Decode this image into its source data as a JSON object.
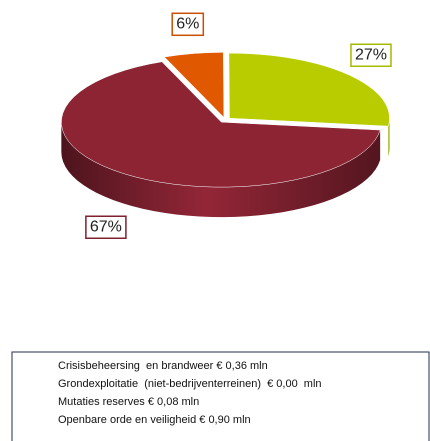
{
  "chart_data": {
    "type": "pie",
    "categories": [
      "Crisisbeheersing  en brandweer € 0,36 mln",
      "Grondexploitatie  (niet-bedrijventerreinen)  € 0,00  mln",
      "Mutaties reserves € 0,08 mln",
      "Openbare orde en veiligheid € 0,90 mln"
    ],
    "values": [
      27,
      0,
      6,
      67
    ],
    "value_labels": [
      "27%",
      null,
      "6%",
      "67%"
    ],
    "colors": [
      "#b8cc00",
      "#0b7a3c",
      "#e05800",
      "#8c2434"
    ]
  }
}
